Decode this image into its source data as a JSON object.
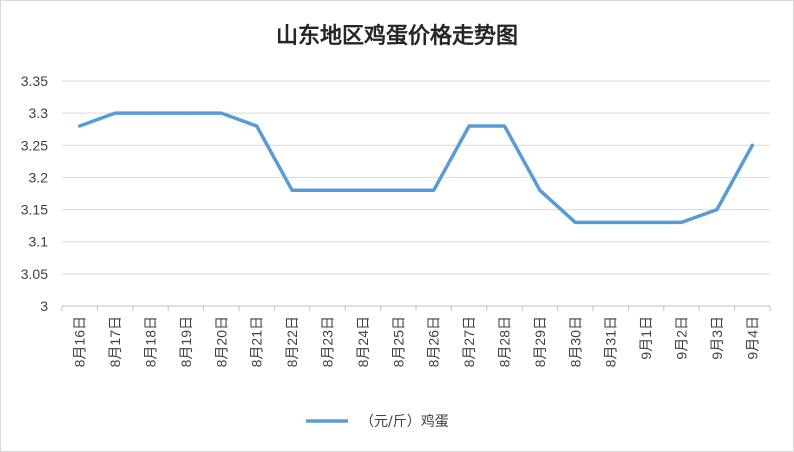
{
  "chart_data": {
    "type": "line",
    "title": "山东地区鸡蛋价格走势图",
    "categories": [
      "8月16日",
      "8月17日",
      "8月18日",
      "8月19日",
      "8月20日",
      "8月21日",
      "8月22日",
      "8月23日",
      "8月24日",
      "8月25日",
      "8月26日",
      "8月27日",
      "8月28日",
      "8月29日",
      "8月30日",
      "8月31日",
      "9月1日",
      "9月2日",
      "9月3日",
      "9月4日"
    ],
    "series": [
      {
        "name": "（元/斤）鸡蛋",
        "values": [
          3.28,
          3.3,
          3.3,
          3.3,
          3.3,
          3.28,
          3.18,
          3.18,
          3.18,
          3.18,
          3.18,
          3.28,
          3.28,
          3.18,
          3.13,
          3.13,
          3.13,
          3.13,
          3.15,
          3.25
        ],
        "color": "#5b9bd5"
      }
    ],
    "yticks": [
      "3",
      "3.05",
      "3.1",
      "3.15",
      "3.2",
      "3.25",
      "3.3",
      "3.35"
    ],
    "ylim": [
      3,
      3.35
    ],
    "grid": true,
    "legend_position": "bottom",
    "gridline_color": "#d9d9d9",
    "axis_color": "#bfbfbf"
  }
}
